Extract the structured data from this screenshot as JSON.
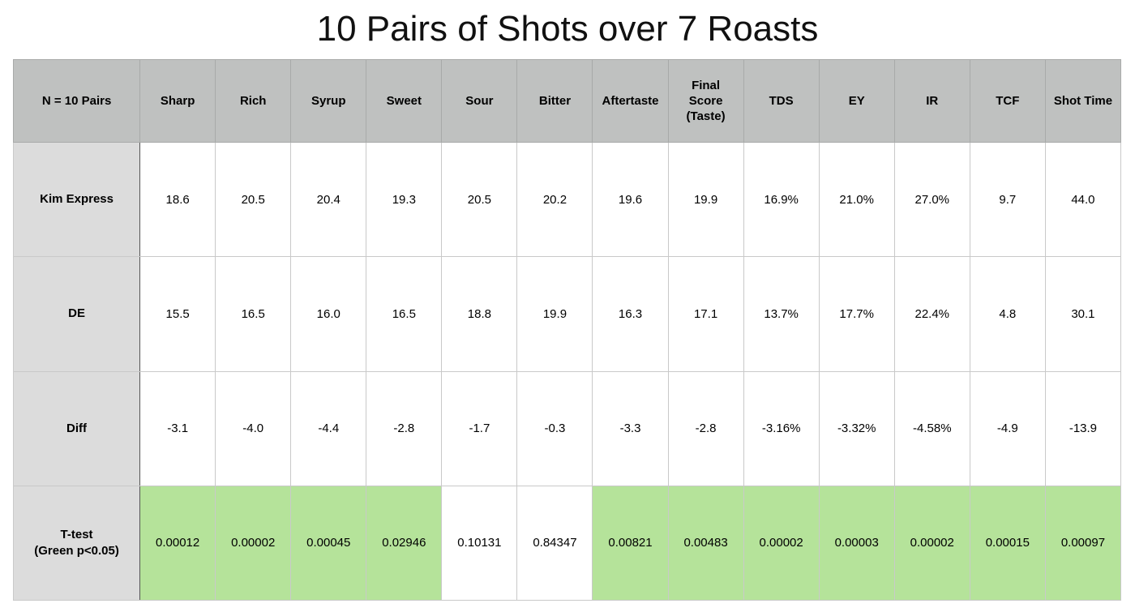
{
  "chart_data": {
    "type": "table",
    "title": "10 Pairs of Shots over 7 Roasts",
    "corner_label": "N = 10 Pairs",
    "columns": [
      "Sharp",
      "Rich",
      "Syrup",
      "Sweet",
      "Sour",
      "Bitter",
      "Aftertaste",
      "Final\nScore\n(Taste)",
      "TDS",
      "EY",
      "IR",
      "TCF",
      "Shot Time"
    ],
    "rows": [
      {
        "label": "Kim Express",
        "values": [
          "18.6",
          "20.5",
          "20.4",
          "19.3",
          "20.5",
          "20.2",
          "19.6",
          "19.9",
          "16.9%",
          "21.0%",
          "27.0%",
          "9.7",
          "44.0"
        ]
      },
      {
        "label": "DE",
        "values": [
          "15.5",
          "16.5",
          "16.0",
          "16.5",
          "18.8",
          "19.9",
          "16.3",
          "17.1",
          "13.7%",
          "17.7%",
          "22.4%",
          "4.8",
          "30.1"
        ]
      },
      {
        "label": "Diff",
        "values": [
          "-3.1",
          "-4.0",
          "-4.4",
          "-2.8",
          "-1.7",
          "-0.3",
          "-3.3",
          "-2.8",
          "-3.16%",
          "-3.32%",
          "-4.58%",
          "-4.9",
          "-13.9"
        ]
      },
      {
        "label": "T-test\n(Green p<0.05)",
        "values": [
          "0.00012",
          "0.00002",
          "0.00045",
          "0.02946",
          "0.10131",
          "0.84347",
          "0.00821",
          "0.00483",
          "0.00002",
          "0.00003",
          "0.00002",
          "0.00015",
          "0.00097"
        ],
        "significant": [
          true,
          true,
          true,
          true,
          false,
          false,
          true,
          true,
          true,
          true,
          true,
          true,
          true
        ]
      }
    ],
    "colors": {
      "header_bg": "#bfc1c0",
      "row_label_bg": "#dcdcdc",
      "significant_bg": "#b5e39a",
      "cell_bg": "#ffffff"
    }
  }
}
